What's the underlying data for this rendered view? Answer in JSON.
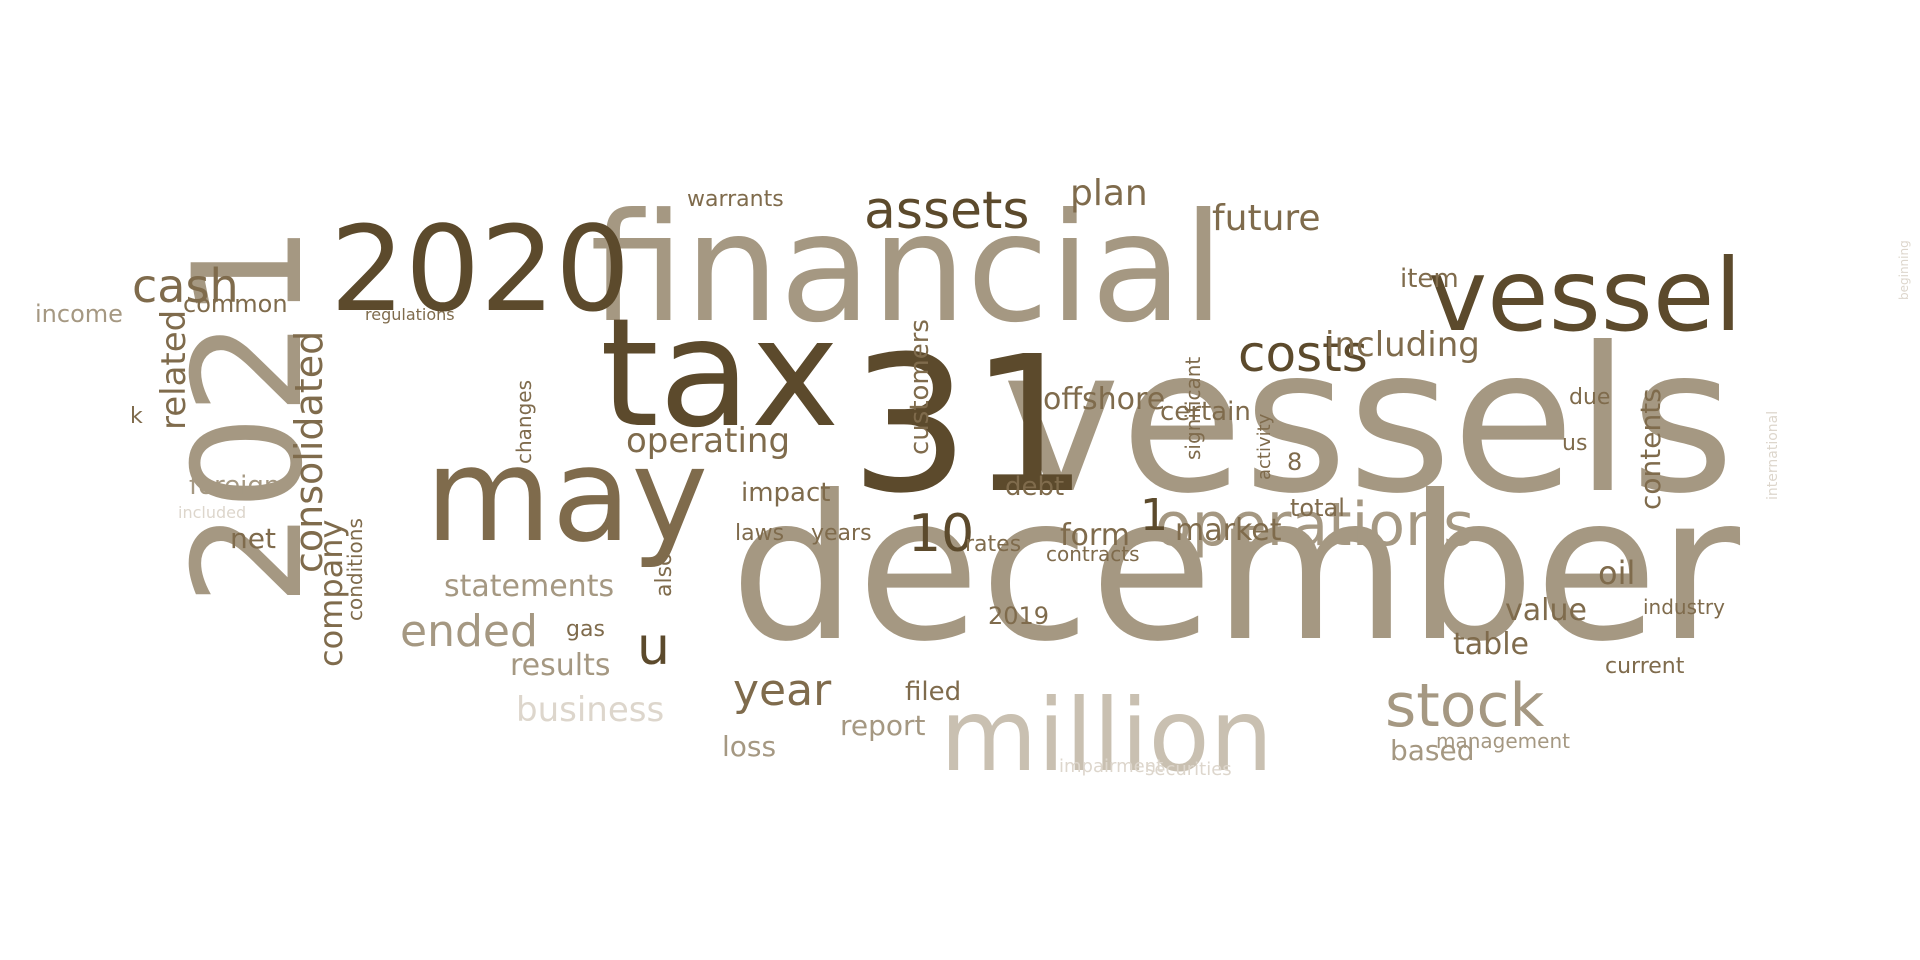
{
  "palette": {
    "dark": "#5c4a2c",
    "mid": "#7f6b4c",
    "taupe": "#a59882",
    "light": "#c9c0b1",
    "pale": "#ddd6cc"
  },
  "words": [
    {
      "text": "december",
      "tone": "taupe"
    },
    {
      "text": "vessels",
      "tone": "taupe"
    },
    {
      "text": "31",
      "tone": "dark"
    },
    {
      "text": "financial",
      "tone": "taupe"
    },
    {
      "text": "2021",
      "tone": "taupe"
    },
    {
      "text": "tax",
      "tone": "dark"
    },
    {
      "text": "may",
      "tone": "mid"
    },
    {
      "text": "million",
      "tone": "light"
    },
    {
      "text": "2020",
      "tone": "dark"
    },
    {
      "text": "vessel",
      "tone": "dark"
    },
    {
      "text": "operations",
      "tone": "taupe"
    },
    {
      "text": "costs",
      "tone": "dark"
    },
    {
      "text": "assets",
      "tone": "dark"
    },
    {
      "text": "stock",
      "tone": "taupe"
    },
    {
      "text": "cash",
      "tone": "mid"
    },
    {
      "text": "consolidated",
      "tone": "mid"
    },
    {
      "text": "including",
      "tone": "mid"
    },
    {
      "text": "plan",
      "tone": "mid"
    },
    {
      "text": "future",
      "tone": "mid"
    },
    {
      "text": "10",
      "tone": "dark"
    },
    {
      "text": "1",
      "tone": "dark"
    },
    {
      "text": "operating",
      "tone": "mid"
    },
    {
      "text": "ended",
      "tone": "taupe"
    },
    {
      "text": "u",
      "tone": "dark"
    },
    {
      "text": "year",
      "tone": "mid"
    },
    {
      "text": "business",
      "tone": "pale"
    },
    {
      "text": "related",
      "tone": "mid"
    },
    {
      "text": "company",
      "tone": "mid"
    },
    {
      "text": "statements",
      "tone": "taupe"
    },
    {
      "text": "offshore",
      "tone": "mid"
    },
    {
      "text": "form",
      "tone": "mid"
    },
    {
      "text": "market",
      "tone": "mid"
    },
    {
      "text": "results",
      "tone": "taupe"
    },
    {
      "text": "value",
      "tone": "mid"
    },
    {
      "text": "table",
      "tone": "mid"
    },
    {
      "text": "oil",
      "tone": "mid"
    },
    {
      "text": "contents",
      "tone": "mid"
    },
    {
      "text": "based",
      "tone": "taupe"
    },
    {
      "text": "certain",
      "tone": "mid"
    },
    {
      "text": "impact",
      "tone": "mid"
    },
    {
      "text": "customers",
      "tone": "mid"
    },
    {
      "text": "net",
      "tone": "mid"
    },
    {
      "text": "foreign",
      "tone": "taupe"
    },
    {
      "text": "income",
      "tone": "taupe"
    },
    {
      "text": "common",
      "tone": "mid"
    },
    {
      "text": "loss",
      "tone": "taupe"
    },
    {
      "text": "report",
      "tone": "taupe"
    },
    {
      "text": "filed",
      "tone": "mid"
    },
    {
      "text": "2019",
      "tone": "mid"
    },
    {
      "text": "debt",
      "tone": "mid"
    },
    {
      "text": "item",
      "tone": "mid"
    },
    {
      "text": "current",
      "tone": "mid"
    },
    {
      "text": "total",
      "tone": "mid"
    },
    {
      "text": "us",
      "tone": "mid"
    },
    {
      "text": "due",
      "tone": "mid"
    },
    {
      "text": "warrants",
      "tone": "mid"
    },
    {
      "text": "also",
      "tone": "mid"
    },
    {
      "text": "gas",
      "tone": "mid"
    },
    {
      "text": "changes",
      "tone": "mid"
    },
    {
      "text": "conditions",
      "tone": "mid"
    },
    {
      "text": "years",
      "tone": "mid"
    },
    {
      "text": "laws",
      "tone": "mid"
    },
    {
      "text": "rates",
      "tone": "mid"
    },
    {
      "text": "significant",
      "tone": "mid"
    },
    {
      "text": "contracts",
      "tone": "mid"
    },
    {
      "text": "industry",
      "tone": "mid"
    },
    {
      "text": "management",
      "tone": "taupe"
    },
    {
      "text": "impairment",
      "tone": "pale"
    },
    {
      "text": "securities",
      "tone": "pale"
    },
    {
      "text": "k",
      "tone": "mid"
    },
    {
      "text": "8",
      "tone": "mid"
    },
    {
      "text": "activity",
      "tone": "mid"
    },
    {
      "text": "regulations",
      "tone": "mid"
    },
    {
      "text": "included",
      "tone": "pale"
    },
    {
      "text": "international",
      "tone": "pale"
    },
    {
      "text": "beginning",
      "tone": "pale"
    }
  ]
}
